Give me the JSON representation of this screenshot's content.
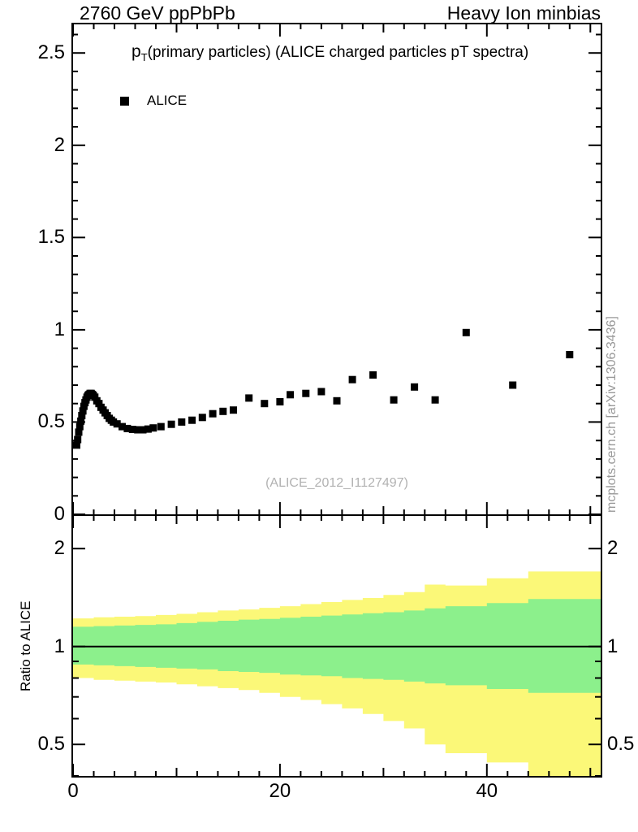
{
  "header": {
    "left": "2760 GeV ppPbPb",
    "right": "Heavy Ion minbias"
  },
  "title": {
    "p": "p",
    "sub": "T",
    "rest": "(primary particles) (ALICE charged particles pT spectra)"
  },
  "legend": {
    "entries": [
      {
        "label": "ALICE",
        "marker": "filled-black-square"
      }
    ]
  },
  "watermark": "(ALICE_2012_I1127497)",
  "side_note": "mcplots.cern.ch [arXiv:1306.3436]",
  "ratio_ylabel": "Ratio to ALICE",
  "colors": {
    "axis": "#000000",
    "marker": "#000000",
    "yellow_band": "#fbf878",
    "green_band": "#8cf08c",
    "watermark": "#b2b2b2",
    "side_note": "#999999"
  },
  "chart_data": [
    {
      "type": "scatter",
      "panel": "main",
      "title": "pT(primary particles) (ALICE charged particles pT spectra)",
      "legend": [
        "ALICE"
      ],
      "marker": "filled-square",
      "marker_color": "#000000",
      "xlim": [
        0,
        51
      ],
      "ylim": [
        0,
        2.655
      ],
      "yticks": [
        0,
        0.5,
        1,
        1.5,
        2,
        2.5
      ],
      "ytick_labels": [
        "0",
        "0.5",
        "1",
        "1.5",
        "2",
        "2.5"
      ],
      "y_minor_step": 0.1,
      "xticks": [
        0,
        20,
        40
      ],
      "xtick_labels": [
        "0",
        "20",
        "40"
      ],
      "x_minor_step": 2,
      "grid": false,
      "points": [
        [
          0.35,
          0.375
        ],
        [
          0.45,
          0.405
        ],
        [
          0.55,
          0.445
        ],
        [
          0.65,
          0.475
        ],
        [
          0.75,
          0.505
        ],
        [
          0.85,
          0.535
        ],
        [
          0.95,
          0.56
        ],
        [
          1.05,
          0.585
        ],
        [
          1.15,
          0.605
        ],
        [
          1.25,
          0.62
        ],
        [
          1.35,
          0.635
        ],
        [
          1.45,
          0.645
        ],
        [
          1.55,
          0.65
        ],
        [
          1.65,
          0.655
        ],
        [
          1.75,
          0.655
        ],
        [
          1.85,
          0.65
        ],
        [
          1.95,
          0.645
        ],
        [
          2.1,
          0.635
        ],
        [
          2.3,
          0.615
        ],
        [
          2.5,
          0.6
        ],
        [
          2.7,
          0.58
        ],
        [
          2.9,
          0.565
        ],
        [
          3.1,
          0.55
        ],
        [
          3.3,
          0.535
        ],
        [
          3.5,
          0.52
        ],
        [
          3.7,
          0.51
        ],
        [
          3.9,
          0.5
        ],
        [
          4.25,
          0.49
        ],
        [
          4.75,
          0.475
        ],
        [
          5.25,
          0.465
        ],
        [
          5.75,
          0.46
        ],
        [
          6.25,
          0.458
        ],
        [
          6.75,
          0.458
        ],
        [
          7.25,
          0.462
        ],
        [
          7.75,
          0.468
        ],
        [
          8.5,
          0.475
        ],
        [
          9.5,
          0.488
        ],
        [
          10.5,
          0.5
        ],
        [
          11.5,
          0.51
        ],
        [
          12.5,
          0.525
        ],
        [
          13.5,
          0.545
        ],
        [
          14.5,
          0.558
        ],
        [
          15.5,
          0.565
        ],
        [
          17,
          0.63
        ],
        [
          18.5,
          0.6
        ],
        [
          20,
          0.61
        ],
        [
          21,
          0.648
        ],
        [
          22.5,
          0.655
        ],
        [
          24,
          0.665
        ],
        [
          25.5,
          0.615
        ],
        [
          27,
          0.73
        ],
        [
          29,
          0.755
        ],
        [
          31,
          0.62
        ],
        [
          33,
          0.69
        ],
        [
          35,
          0.62
        ],
        [
          38,
          0.985
        ],
        [
          42.5,
          0.7
        ],
        [
          48,
          0.865
        ]
      ]
    },
    {
      "type": "band",
      "panel": "ratio",
      "ylabel": "Ratio to ALICE",
      "yscale": "log",
      "xlim": [
        0,
        51
      ],
      "ylim": [
        0.4,
        2.52
      ],
      "yticks": [
        0.5,
        1,
        2
      ],
      "ytick_labels": [
        "0.5",
        "1",
        "2"
      ],
      "y_minor_ticks": [
        0.4,
        0.6,
        0.7,
        0.8,
        0.9
      ],
      "x_minor_step": 2,
      "reference_line": 1,
      "yellow_bins": [
        [
          0,
          2,
          0.8,
          1.22
        ],
        [
          2,
          4,
          0.79,
          1.23
        ],
        [
          4,
          6,
          0.785,
          1.235
        ],
        [
          6,
          8,
          0.78,
          1.24
        ],
        [
          8,
          10,
          0.775,
          1.25
        ],
        [
          10,
          12,
          0.765,
          1.26
        ],
        [
          12,
          14,
          0.755,
          1.275
        ],
        [
          14,
          16,
          0.745,
          1.29
        ],
        [
          16,
          18,
          0.735,
          1.3
        ],
        [
          18,
          20,
          0.72,
          1.315
        ],
        [
          20,
          22,
          0.7,
          1.33
        ],
        [
          22,
          24,
          0.685,
          1.35
        ],
        [
          24,
          26,
          0.665,
          1.37
        ],
        [
          26,
          28,
          0.645,
          1.39
        ],
        [
          28,
          30,
          0.62,
          1.41
        ],
        [
          30,
          32,
          0.59,
          1.44
        ],
        [
          32,
          34,
          0.56,
          1.47
        ],
        [
          34,
          36,
          0.5,
          1.55
        ],
        [
          36,
          40,
          0.47,
          1.54
        ],
        [
          40,
          44,
          0.44,
          1.62
        ],
        [
          44,
          51,
          0.38,
          1.7
        ]
      ],
      "green_bins": [
        [
          0,
          2,
          0.88,
          1.15
        ],
        [
          2,
          4,
          0.875,
          1.155
        ],
        [
          4,
          6,
          0.87,
          1.16
        ],
        [
          6,
          8,
          0.865,
          1.165
        ],
        [
          8,
          10,
          0.86,
          1.17
        ],
        [
          10,
          12,
          0.855,
          1.18
        ],
        [
          12,
          14,
          0.85,
          1.19
        ],
        [
          14,
          16,
          0.84,
          1.2
        ],
        [
          16,
          18,
          0.835,
          1.21
        ],
        [
          18,
          20,
          0.83,
          1.215
        ],
        [
          20,
          22,
          0.82,
          1.225
        ],
        [
          22,
          24,
          0.815,
          1.235
        ],
        [
          24,
          26,
          0.81,
          1.245
        ],
        [
          26,
          28,
          0.8,
          1.255
        ],
        [
          28,
          30,
          0.795,
          1.265
        ],
        [
          30,
          32,
          0.79,
          1.275
        ],
        [
          32,
          34,
          0.78,
          1.29
        ],
        [
          34,
          36,
          0.77,
          1.31
        ],
        [
          36,
          40,
          0.76,
          1.33
        ],
        [
          40,
          44,
          0.74,
          1.36
        ],
        [
          44,
          51,
          0.72,
          1.4
        ]
      ]
    }
  ]
}
